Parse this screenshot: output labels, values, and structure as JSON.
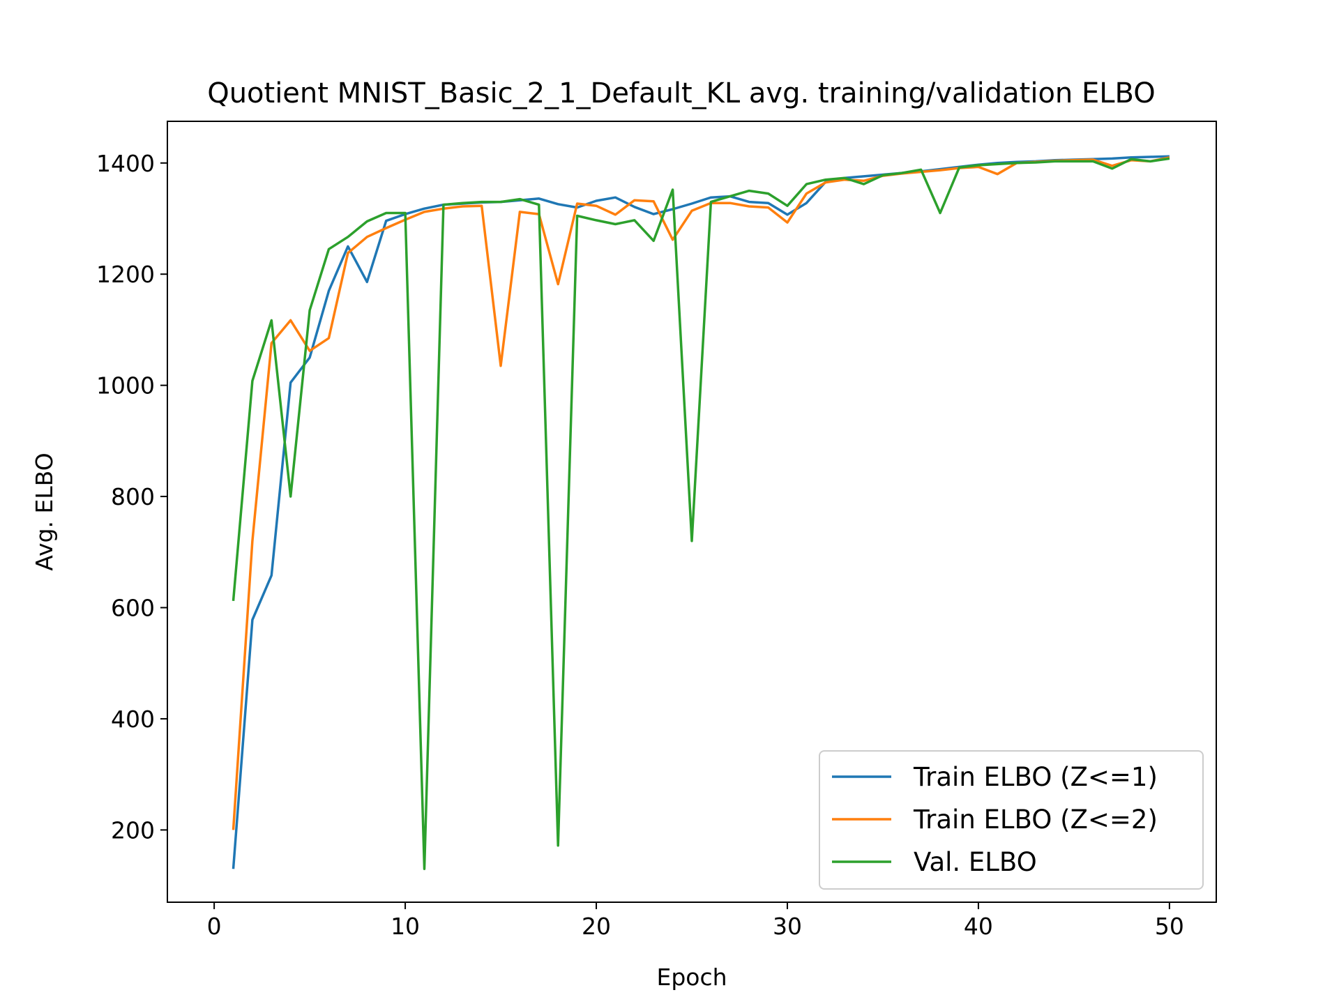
{
  "chart_data": {
    "type": "line",
    "title": "Quotient MNIST_Basic_2_1_Default_KL avg. training/validation ELBO",
    "xlabel": "Epoch",
    "ylabel": "Avg. ELBO",
    "xlim": [
      -2.45,
      52.45
    ],
    "ylim": [
      70,
      1475
    ],
    "xticks": [
      0,
      10,
      20,
      30,
      40,
      50
    ],
    "yticks": [
      200,
      400,
      600,
      800,
      1000,
      1200,
      1400
    ],
    "grid": false,
    "legend_position": "lower-right",
    "x": [
      1,
      2,
      3,
      4,
      5,
      6,
      7,
      8,
      9,
      10,
      11,
      12,
      13,
      14,
      15,
      16,
      17,
      18,
      19,
      20,
      21,
      22,
      23,
      24,
      25,
      26,
      27,
      28,
      29,
      30,
      31,
      32,
      33,
      34,
      35,
      36,
      37,
      38,
      39,
      40,
      41,
      42,
      43,
      44,
      45,
      46,
      47,
      48,
      49,
      50
    ],
    "series": [
      {
        "name": "Train ELBO (Z<=1)",
        "color": "#1f77b4",
        "values": [
          130,
          578,
          658,
          1005,
          1050,
          1170,
          1250,
          1186,
          1296,
          1308,
          1318,
          1325,
          1327,
          1329,
          1330,
          1333,
          1336,
          1326,
          1320,
          1332,
          1338,
          1321,
          1308,
          1317,
          1327,
          1338,
          1340,
          1330,
          1328,
          1307,
          1328,
          1366,
          1373,
          1376,
          1379,
          1382,
          1385,
          1389,
          1393,
          1397,
          1400,
          1402,
          1403,
          1405,
          1406,
          1407,
          1408,
          1410,
          1411,
          1412
        ]
      },
      {
        "name": "Train ELBO (Z<=2)",
        "color": "#ff7f0e",
        "values": [
          200,
          720,
          1076,
          1117,
          1062,
          1085,
          1238,
          1267,
          1283,
          1298,
          1312,
          1318,
          1322,
          1323,
          1035,
          1312,
          1308,
          1182,
          1327,
          1323,
          1307,
          1333,
          1331,
          1262,
          1314,
          1328,
          1328,
          1322,
          1320,
          1293,
          1345,
          1365,
          1370,
          1368,
          1377,
          1381,
          1384,
          1387,
          1391,
          1393,
          1380,
          1400,
          1402,
          1404,
          1405,
          1406,
          1395,
          1405,
          1403,
          1410
        ]
      },
      {
        "name": "Val. ELBO",
        "color": "#2ca02c",
        "values": [
          612,
          1008,
          1117,
          800,
          1135,
          1245,
          1267,
          1295,
          1310,
          1310,
          130,
          1325,
          1328,
          1330,
          1330,
          1335,
          1325,
          172,
          1305,
          1297,
          1290,
          1297,
          1260,
          1352,
          720,
          1330,
          1340,
          1350,
          1345,
          1323,
          1362,
          1370,
          1373,
          1362,
          1378,
          1382,
          1388,
          1310,
          1392,
          1396,
          1398,
          1400,
          1401,
          1403,
          1403,
          1403,
          1390,
          1407,
          1403,
          1408
        ]
      }
    ]
  }
}
